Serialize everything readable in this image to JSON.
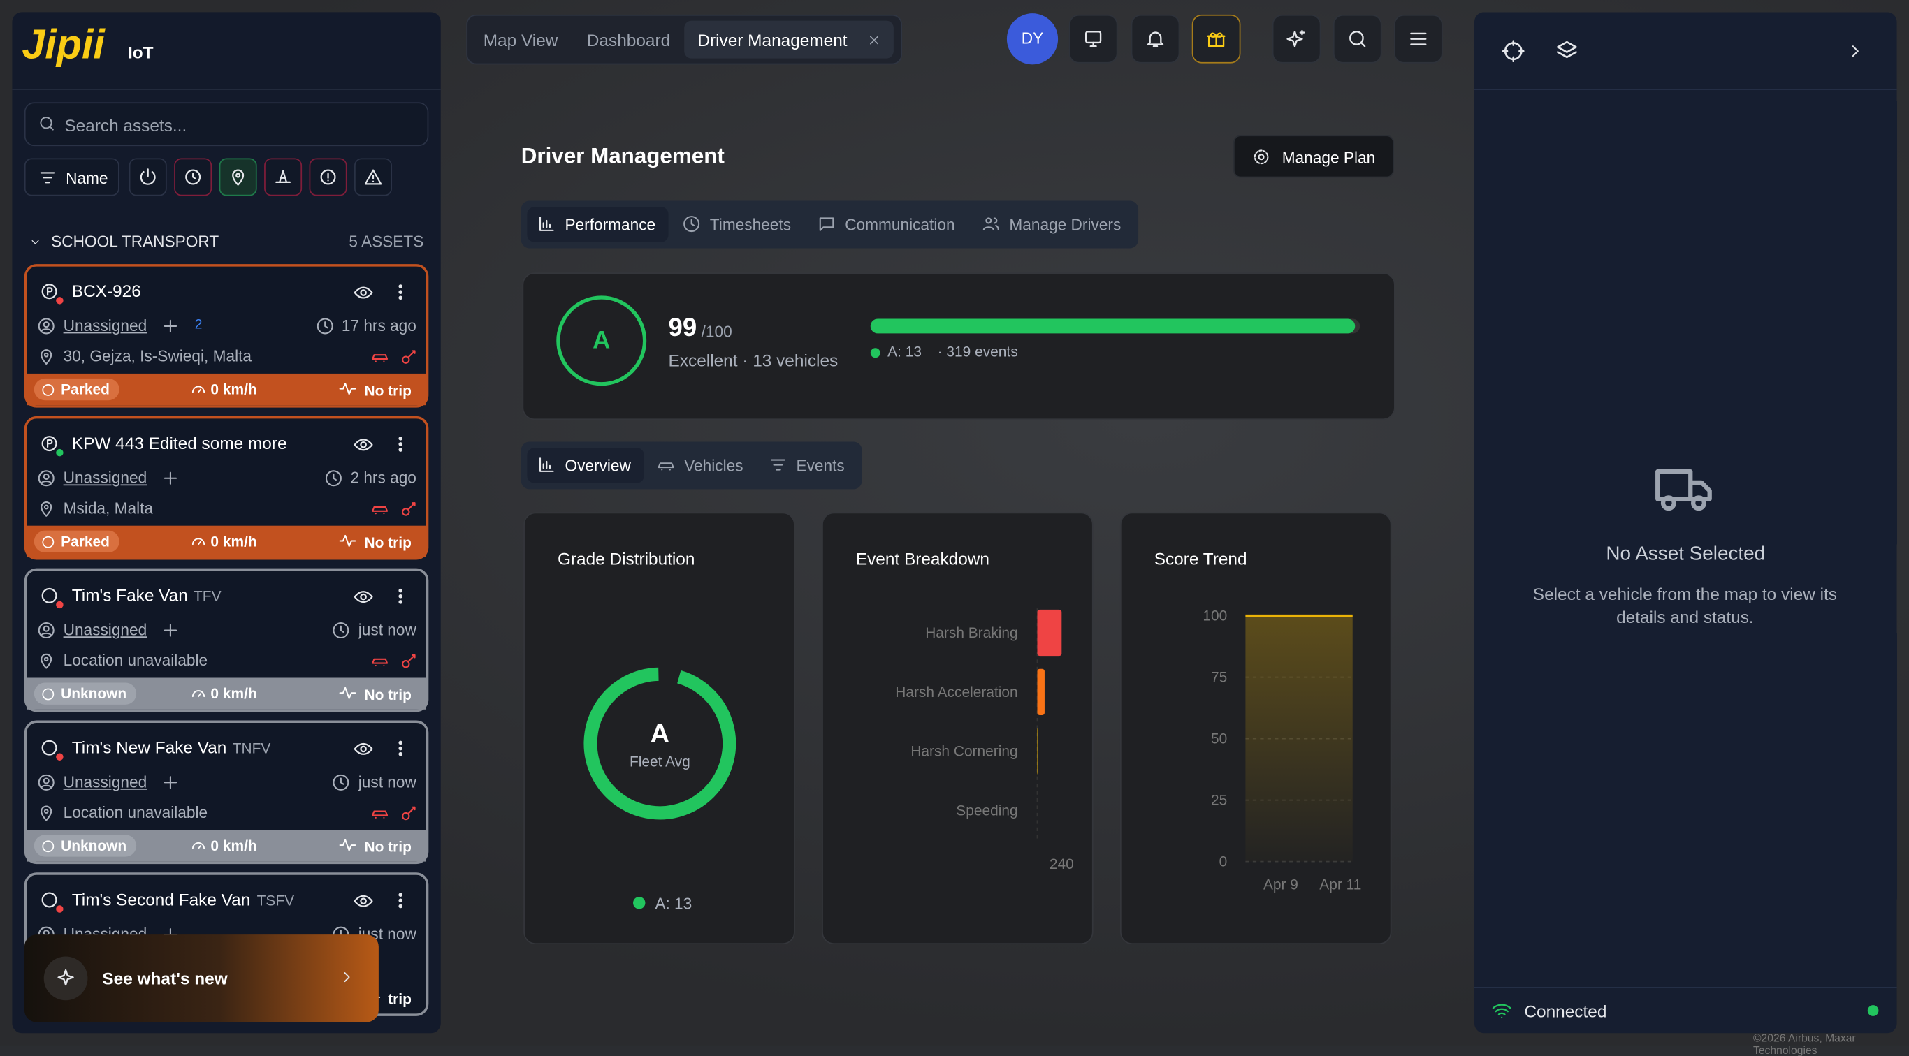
{
  "brand": {
    "logo": "Jipii",
    "suffix": "IoT"
  },
  "sidebar": {
    "search_placeholder": "Search assets...",
    "sort": "Name",
    "group": {
      "name": "SCHOOL TRANSPORT",
      "count": "5 ASSETS"
    },
    "assets": [
      {
        "name": "BCX-926",
        "driver": "Unassigned",
        "signals": "2",
        "time": "17 hrs ago",
        "location": "30, Gejza, Is-Swieqi, Malta",
        "status": "Parked",
        "speed": "0 km/h",
        "trip": "No trip"
      },
      {
        "name": "KPW 443 Edited some more",
        "driver": "Unassigned",
        "time": "2 hrs ago",
        "location": "Msida, Malta",
        "status": "Parked",
        "speed": "0 km/h",
        "trip": "No trip"
      },
      {
        "name": "Tim's Fake Van",
        "code": "TFV",
        "driver": "Unassigned",
        "time": "just now",
        "location": "Location unavailable",
        "status": "Unknown",
        "speed": "0 km/h",
        "trip": "No trip"
      },
      {
        "name": "Tim's New Fake Van",
        "code": "TNFV",
        "driver": "Unassigned",
        "time": "just now",
        "location": "Location unavailable",
        "status": "Unknown",
        "speed": "0 km/h",
        "trip": "No trip"
      },
      {
        "name": "Tim's Second Fake Van",
        "code": "TSFV",
        "driver": "Unassigned",
        "time": "just now",
        "trip": "trip"
      }
    ],
    "promo": "See what's new"
  },
  "topbar": {
    "tabs": [
      "Map View",
      "Dashboard",
      "Driver Management"
    ],
    "avatar": "DY"
  },
  "page": {
    "title": "Driver Management",
    "manage_plan": "Manage Plan",
    "tabs": [
      "Performance",
      "Timesheets",
      "Communication",
      "Manage Drivers"
    ],
    "summary": {
      "grade": "A",
      "score": 99,
      "score_max_label": "/100",
      "score_scale": [
        0,
        100
      ],
      "description": "Excellent · 13 vehicles",
      "legend": "A: 13",
      "events": "· 319 events"
    },
    "sub_tabs": [
      "Overview",
      "Vehicles",
      "Events"
    ]
  },
  "chart_data": [
    {
      "type": "donut",
      "title": "Grade Distribution",
      "center_label": "A",
      "center_sublabel": "Fleet Avg",
      "series": [
        {
          "name": "A",
          "value": 13,
          "value_label": "A: 13",
          "color": "#22c55e"
        }
      ]
    },
    {
      "type": "hbar",
      "title": "Event Breakdown",
      "categories": [
        "Harsh Braking",
        "Harsh Acceleration",
        "Harsh Cornering",
        "Speeding"
      ],
      "values": [
        240,
        72,
        7,
        0
      ],
      "colors": [
        "#ef4444",
        "#f97316",
        "#eab308",
        "#64748b"
      ],
      "xlim": [
        0,
        240
      ],
      "xticks": [
        240
      ]
    },
    {
      "type": "area",
      "title": "Score Trend",
      "categories": [
        "Apr 9",
        "Apr 11"
      ],
      "values": [
        100,
        100
      ],
      "color": "#eab308",
      "ylim": [
        0,
        100
      ],
      "yticks": [
        0,
        25,
        50,
        75,
        100
      ],
      "grid": true
    }
  ],
  "right_panel": {
    "empty_title": "No Asset Selected",
    "empty_text": "Select a vehicle from the map to view its details and status.",
    "status": "Connected"
  },
  "map": {
    "attribution": "©2026 Airbus, Maxar Technologies"
  }
}
